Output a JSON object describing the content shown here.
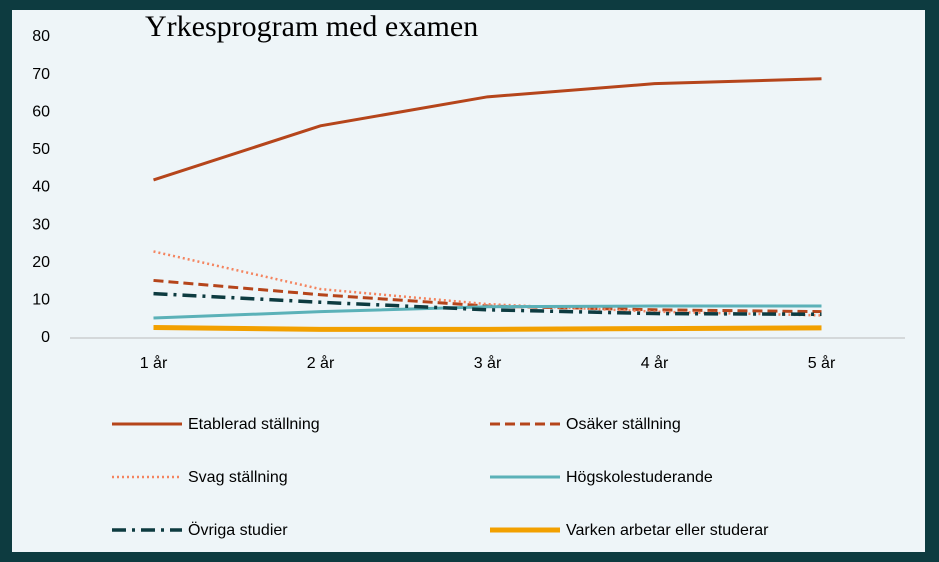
{
  "chart_data": {
    "type": "line",
    "title": "Yrkesprogram med examen",
    "categories": [
      "1 år",
      "2 år",
      "3 år",
      "4 år",
      "5 år"
    ],
    "ylim": [
      0,
      80
    ],
    "yticks": [
      0,
      10,
      20,
      30,
      40,
      50,
      60,
      70,
      80
    ],
    "grid": false,
    "legend": "bottom",
    "series": [
      {
        "name": "Etablerad ställning",
        "color": "#b5451b",
        "style": "solid",
        "values": [
          42,
          56.4,
          64.1,
          67.6,
          68.9
        ]
      },
      {
        "name": "Osäker ställning",
        "color": "#b5451b",
        "style": "dashed",
        "values": [
          15.3,
          11.5,
          8.5,
          7.5,
          7
        ]
      },
      {
        "name": "Svag ställning",
        "color": "#f4845f",
        "style": "dotted",
        "values": [
          23,
          13,
          9,
          7,
          6
        ]
      },
      {
        "name": "Högskolestuderande",
        "color": "#5bb1b8",
        "style": "solid",
        "values": [
          5.3,
          7,
          8.3,
          8.5,
          8.5
        ]
      },
      {
        "name": "Övriga studier",
        "color": "#0d3b40",
        "style": "dashdot",
        "values": [
          11.8,
          9.5,
          7.5,
          6.5,
          6.3
        ]
      },
      {
        "name": "Varken arbetar eller studerar",
        "color": "#f2a000",
        "style": "bold",
        "values": [
          2.8,
          2.3,
          2.3,
          2.5,
          2.7
        ]
      }
    ]
  }
}
